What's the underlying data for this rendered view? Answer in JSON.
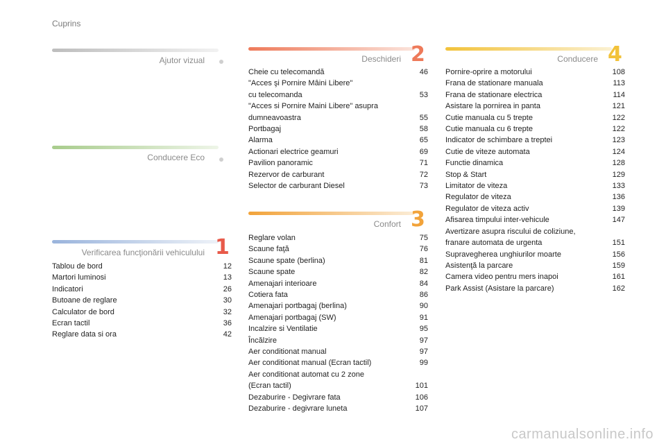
{
  "page_title": "Cuprins",
  "sections": {
    "ajutor": {
      "title": "Ajutor vizual"
    },
    "eco": {
      "title": "Conducere Eco"
    },
    "verificarea": {
      "title": "Verificarea funcţionării vehiculului",
      "number": "1",
      "items": [
        {
          "label": "Tablou de bord",
          "page": "12"
        },
        {
          "label": "Martori luminosi",
          "page": "13"
        },
        {
          "label": "Indicatori",
          "page": "26"
        },
        {
          "label": "Butoane de reglare",
          "page": "30"
        },
        {
          "label": "Calculator de bord",
          "page": "32"
        },
        {
          "label": "Ecran tactil",
          "page": "36"
        },
        {
          "label": "Reglare data si ora",
          "page": "42"
        }
      ]
    },
    "deschideri": {
      "title": "Deschideri",
      "number": "2",
      "items": [
        {
          "label": "Cheie cu telecomandă",
          "page": "46"
        },
        {
          "label": "\"Acces şi Pornire Mâini Libere\"\n  cu telecomanda",
          "page": "53"
        },
        {
          "label": "\"Acces si Pornire Maini Libere\" asupra\n  dumneavoastra",
          "page": "55"
        },
        {
          "label": "Portbagaj",
          "page": "58"
        },
        {
          "label": "Alarma",
          "page": "65"
        },
        {
          "label": "Actionari electrice geamuri",
          "page": "69"
        },
        {
          "label": "Pavilion panoramic",
          "page": "71"
        },
        {
          "label": "Rezervor de carburant",
          "page": "72"
        },
        {
          "label": "Selector de carburant Diesel",
          "page": "73"
        }
      ]
    },
    "confort": {
      "title": "Confort",
      "number": "3",
      "items": [
        {
          "label": "Reglare volan",
          "page": "75"
        },
        {
          "label": "Scaune faţă",
          "page": "76"
        },
        {
          "label": "Scaune spate (berlina)",
          "page": "81"
        },
        {
          "label": "Scaune spate",
          "page": "82"
        },
        {
          "label": "Amenajari interioare",
          "page": "84"
        },
        {
          "label": "Cotiera fata",
          "page": "86"
        },
        {
          "label": "Amenajari portbagaj (berlina)",
          "page": "90"
        },
        {
          "label": "Amenajari portbagaj (SW)",
          "page": "91"
        },
        {
          "label": "Incalzire si Ventilatie",
          "page": "95"
        },
        {
          "label": "Încălzire",
          "page": "97"
        },
        {
          "label": "Aer conditionat manual",
          "page": "97"
        },
        {
          "label": "Aer conditionat manual (Ecran tactil)",
          "page": "99"
        },
        {
          "label": "Aer conditionat automat cu 2 zone\n  (Ecran tactil)",
          "page": "101"
        },
        {
          "label": "Dezaburire - Degivrare fata",
          "page": "106"
        },
        {
          "label": "Dezaburire - degivrare luneta",
          "page": "107"
        }
      ]
    },
    "conducere": {
      "title": "Conducere",
      "number": "4",
      "items": [
        {
          "label": "Pornire-oprire a motorului",
          "page": "108"
        },
        {
          "label": "Frana de stationare manuala",
          "page": "113"
        },
        {
          "label": "Frana de stationare electrica",
          "page": "114"
        },
        {
          "label": "Asistare la pornirea in panta",
          "page": "121"
        },
        {
          "label": "Cutie manuala cu 5 trepte",
          "page": "122"
        },
        {
          "label": "Cutie manuala cu 6 trepte",
          "page": "122"
        },
        {
          "label": "Indicator de schimbare a treptei",
          "page": "123"
        },
        {
          "label": "Cutie de viteze automata",
          "page": "124"
        },
        {
          "label": "Functie dinamica",
          "page": "128"
        },
        {
          "label": "Stop & Start",
          "page": "129"
        },
        {
          "label": "Limitator de viteza",
          "page": "133"
        },
        {
          "label": "Regulator de viteza",
          "page": "136"
        },
        {
          "label": "Regulator de viteza activ",
          "page": "139"
        },
        {
          "label": "Afisarea timpului inter-vehicule",
          "page": "147"
        },
        {
          "label": "Avertizare asupra riscului de coliziune,\n  franare automata de urgenta",
          "page": "151"
        },
        {
          "label": "Supravegherea unghiurilor moarte",
          "page": "156"
        },
        {
          "label": "Asistenţă la parcare",
          "page": "159"
        },
        {
          "label": "Camera video pentru mers inapoi",
          "page": "161"
        },
        {
          "label": "Park Assist (Asistare la parcare)",
          "page": "162"
        }
      ]
    }
  },
  "colors": {
    "ajutor": "#c8c8c8",
    "eco": "#a8cc8c",
    "verificarea": "#9ab4dc",
    "deschideri": "#ee7a5a",
    "confort": "#f2a33a",
    "conducere": "#f2c23a",
    "num1": "#e85a4a",
    "num2": "#ee7a5a",
    "num3": "#f2a33a",
    "num4": "#f2c23a"
  },
  "watermark": "carmanualsonline.info"
}
